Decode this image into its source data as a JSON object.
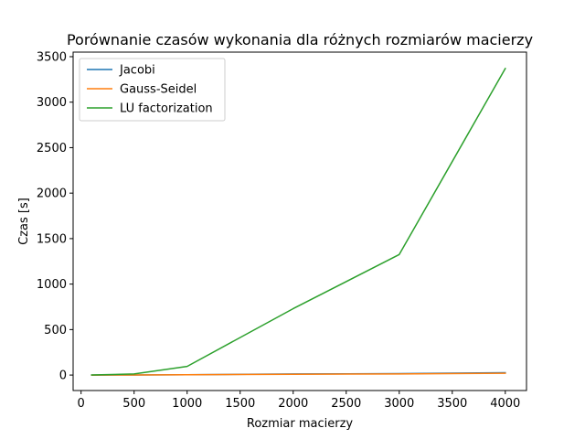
{
  "chart_data": {
    "type": "line",
    "title": "Porównanie czasów wykonania dla różnych rozmiarów macierzy",
    "xlabel": "Rozmiar macierzy",
    "ylabel": "Czas [s]",
    "xlim": [
      -75,
      4200
    ],
    "ylim": [
      -170,
      3550
    ],
    "xticks": [
      0,
      500,
      1000,
      1500,
      2000,
      2500,
      3000,
      3500,
      4000
    ],
    "yticks": [
      0,
      500,
      1000,
      1500,
      2000,
      2500,
      3000,
      3500
    ],
    "grid": false,
    "legend_position": "top-left",
    "x": [
      100,
      500,
      1000,
      2000,
      3000,
      4000
    ],
    "series": [
      {
        "name": "Jacobi",
        "color": "#1f77b4",
        "values": [
          0.1,
          1.5,
          4,
          12,
          16,
          26
        ]
      },
      {
        "name": "Gauss-Seidel",
        "color": "#ff7f0e",
        "values": [
          0.1,
          1,
          3,
          9,
          12,
          20
        ]
      },
      {
        "name": "LU factorization",
        "color": "#2ca02c",
        "values": [
          1,
          12,
          95,
          730,
          1325,
          3370
        ]
      }
    ]
  }
}
